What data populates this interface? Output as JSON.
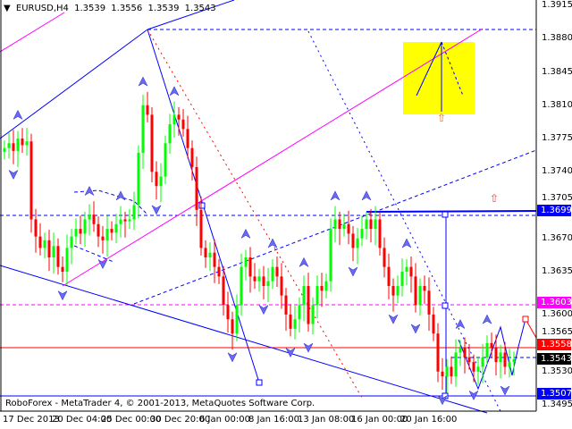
{
  "header": {
    "symbol": "EURUSD,H4",
    "open": "1.3539",
    "high": "1.3556",
    "low": "1.3539",
    "close": "1.3543"
  },
  "footer": {
    "copyright": "RoboForex - MetaTrader 4, © 2001-2013, MetaQuotes Software Corp."
  },
  "price_labels": [
    {
      "value": "1.3699",
      "color": "#0000ff"
    },
    {
      "value": "1.3603",
      "color": "#ff00ff"
    },
    {
      "value": "1.3558",
      "color": "#ff0000"
    },
    {
      "value": "1.3543",
      "color": "#000000"
    },
    {
      "value": "1.3507",
      "color": "#0000ff"
    }
  ],
  "chart_data": {
    "type": "candlestick",
    "title": "EURUSD,H4",
    "ylim": [
      1.349,
      1.392
    ],
    "y_ticks": [
      "1.3915",
      "1.3880",
      "1.3845",
      "1.3810",
      "1.3775",
      "1.3740",
      "1.3705",
      "1.3670",
      "1.3635",
      "1.3600",
      "1.3565",
      "1.3530",
      "1.3495"
    ],
    "x_ticks": [
      {
        "label": "17 Dec 2013",
        "bar": 0
      },
      {
        "label": "20 Dec 04:00",
        "bar": 11
      },
      {
        "label": "25 Dec 00:00",
        "bar": 22
      },
      {
        "label": "30 Dec 20:00",
        "bar": 33
      },
      {
        "label": "6 Jan 00:00",
        "bar": 44
      },
      {
        "label": "8 Jan 16:00",
        "bar": 55
      },
      {
        "label": "13 Jan 08:00",
        "bar": 66
      },
      {
        "label": "16 Jan 00:00",
        "bar": 78
      },
      {
        "label": "20 Jan 16:00",
        "bar": 89
      }
    ],
    "closes": [
      1.3765,
      1.377,
      1.3762,
      1.3775,
      1.3768,
      1.3772,
      1.369,
      1.3672,
      1.366,
      1.3668,
      1.365,
      1.3662,
      1.364,
      1.3635,
      1.366,
      1.3672,
      1.368,
      1.3675,
      1.369,
      1.3695,
      1.3685,
      1.3672,
      1.3668,
      1.368,
      1.3676,
      1.3685,
      1.369,
      1.3688,
      1.369,
      1.3705,
      1.376,
      1.381,
      1.38,
      1.374,
      1.3725,
      1.3735,
      1.377,
      1.379,
      1.38,
      1.3795,
      1.3785,
      1.3765,
      1.3745,
      1.37,
      1.366,
      1.365,
      1.3655,
      1.364,
      1.363,
      1.36,
      1.3585,
      1.357,
      1.36,
      1.364,
      1.365,
      1.363,
      1.3625,
      1.363,
      1.362,
      1.3625,
      1.364,
      1.363,
      1.361,
      1.359,
      1.3575,
      1.3585,
      1.36,
      1.362,
      1.358,
      1.36,
      1.362,
      1.3615,
      1.3625,
      1.368,
      1.369,
      1.368,
      1.3685,
      1.3675,
      1.366,
      1.367,
      1.368,
      1.369,
      1.368,
      1.369,
      1.366,
      1.364,
      1.362,
      1.361,
      1.362,
      1.3635,
      1.364,
      1.363,
      1.36,
      1.362,
      1.3615,
      1.359,
      1.357,
      1.353,
      1.3525,
      1.3535,
      1.3525,
      1.355,
      1.3555,
      1.3545,
      1.354,
      1.353,
      1.3535,
      1.3545,
      1.356,
      1.3555,
      1.354,
      1.355,
      1.3535,
      1.354,
      1.3543
    ],
    "levels": [
      1.3699,
      1.3603,
      1.3558,
      1.3543,
      1.3507
    ],
    "colors": {
      "bull": "#00ff00",
      "bear": "#ff0000",
      "doji": "#000000",
      "target_box": "#ffff00"
    },
    "grid": false
  }
}
